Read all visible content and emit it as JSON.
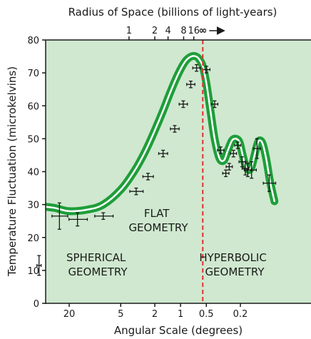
{
  "chart_data": {
    "type": "line",
    "title": "",
    "top_axis_title": "Radius of Space (billions of light-years)",
    "top_ticks": [
      {
        "label": "1",
        "angle": 4.0
      },
      {
        "label": "2",
        "angle": 2.0
      },
      {
        "label": "4",
        "angle": 1.4
      },
      {
        "label": "8",
        "angle": 0.92
      },
      {
        "label": "16",
        "angle": 0.7
      }
    ],
    "top_infinity_label": "∞",
    "top_infinity_angle": 0.55,
    "xlabel": "Angular Scale (degrees)",
    "x_ticks": [
      {
        "label": "20",
        "angle": 20
      },
      {
        "label": "5",
        "angle": 5
      },
      {
        "label": "2",
        "angle": 2
      },
      {
        "label": "1",
        "angle": 1
      },
      {
        "label": "0.5",
        "angle": 0.5
      },
      {
        "label": "0.2",
        "angle": 0.2
      }
    ],
    "x_scale": "reciprocal (multipole, log-spaced)",
    "xlim_degrees": [
      45,
      0.08
    ],
    "ylabel": "Temperature Fluctuation (microkelvins)",
    "ylim": [
      0,
      80
    ],
    "yticks": [
      0,
      10,
      20,
      30,
      40,
      50,
      60,
      70,
      80
    ],
    "background": "#cfe8cf",
    "colors": {
      "curve": "#1e9e3a",
      "curve_inner": "#ffffff",
      "flat_line": "#e03131",
      "points": "#1a1a1a"
    },
    "annotations": [
      {
        "text": [
          "FLAT",
          "GEOMETRY"
        ]
      },
      {
        "text": [
          "SPHERICAL",
          "GEOMETRY"
        ]
      },
      {
        "text": [
          "HYPERBOLIC",
          "GEOMETRY"
        ]
      }
    ],
    "flat_geometry_angle": 0.55,
    "model_curve": {
      "x_degrees": [
        45,
        30,
        20,
        12,
        8,
        5,
        3.5,
        2.6,
        2.0,
        1.6,
        1.3,
        1.05,
        0.88,
        0.75,
        0.66,
        0.6,
        0.55,
        0.5,
        0.45,
        0.4,
        0.35,
        0.31,
        0.28,
        0.25,
        0.225,
        0.205,
        0.19,
        0.175,
        0.16,
        0.148,
        0.138,
        0.128,
        0.12,
        0.11,
        0.1,
        0.09,
        0.08
      ],
      "y": [
        29.5,
        29,
        28,
        28.5,
        30,
        34.5,
        40,
        46,
        52.5,
        58.5,
        64.5,
        70,
        73.5,
        75,
        75,
        74,
        72,
        67,
        59,
        50,
        44,
        43.5,
        46.5,
        49.5,
        50,
        49,
        45.5,
        42,
        40.5,
        41.5,
        44.5,
        48,
        49.5,
        48.5,
        44,
        37,
        31
      ]
    },
    "series": [
      {
        "type": "errorbar",
        "points": [
          {
            "x": 45,
            "y": 11.5,
            "yerr": 3,
            "xerr": 0
          },
          {
            "x": 26,
            "y": 26.5,
            "yerr": 4,
            "xerr": 4
          },
          {
            "x": 16,
            "y": 25.5,
            "yerr": 2,
            "xerr": 3
          },
          {
            "x": 8,
            "y": 26.5,
            "yerr": 1,
            "xerr": 1.5
          },
          {
            "x": 3.3,
            "y": 34,
            "yerr": 1,
            "xerr": 0.4
          },
          {
            "x": 2.4,
            "y": 38.5,
            "yerr": 1,
            "xerr": 0.2
          },
          {
            "x": 1.6,
            "y": 45.5,
            "yerr": 1,
            "xerr": 0.1
          },
          {
            "x": 1.17,
            "y": 53,
            "yerr": 1,
            "xerr": 0.07
          },
          {
            "x": 0.93,
            "y": 60.5,
            "yerr": 1,
            "xerr": 0.05
          },
          {
            "x": 0.76,
            "y": 66.5,
            "yerr": 1,
            "xerr": 0.04
          },
          {
            "x": 0.65,
            "y": 71.5,
            "yerr": 1,
            "xerr": 0.03
          },
          {
            "x": 0.5,
            "y": 71,
            "yerr": 1,
            "xerr": 0.02
          },
          {
            "x": 0.4,
            "y": 60.5,
            "yerr": 1,
            "xerr": 0.012
          },
          {
            "x": 0.34,
            "y": 46.5,
            "yerr": 1,
            "xerr": 0.01
          },
          {
            "x": 0.296,
            "y": 39.5,
            "yerr": 1,
            "xerr": 0.008
          },
          {
            "x": 0.27,
            "y": 41.5,
            "yerr": 1,
            "xerr": 0.007
          },
          {
            "x": 0.241,
            "y": 45.5,
            "yerr": 1,
            "xerr": 0.006
          },
          {
            "x": 0.215,
            "y": 48,
            "yerr": 1,
            "xerr": 0.005
          },
          {
            "x": 0.191,
            "y": 43,
            "yerr": 1.5,
            "xerr": 0.005
          },
          {
            "x": 0.175,
            "y": 41,
            "yerr": 2,
            "xerr": 0.005
          },
          {
            "x": 0.164,
            "y": 40.5,
            "yerr": 2,
            "xerr": 0.005
          },
          {
            "x": 0.148,
            "y": 40.5,
            "yerr": 2.5,
            "xerr": 0.01
          },
          {
            "x": 0.128,
            "y": 47,
            "yerr": 3,
            "xerr": 0.005
          },
          {
            "x": 0.092,
            "y": 36.5,
            "yerr": 2.5,
            "xerr": 0.01
          }
        ]
      }
    ]
  }
}
